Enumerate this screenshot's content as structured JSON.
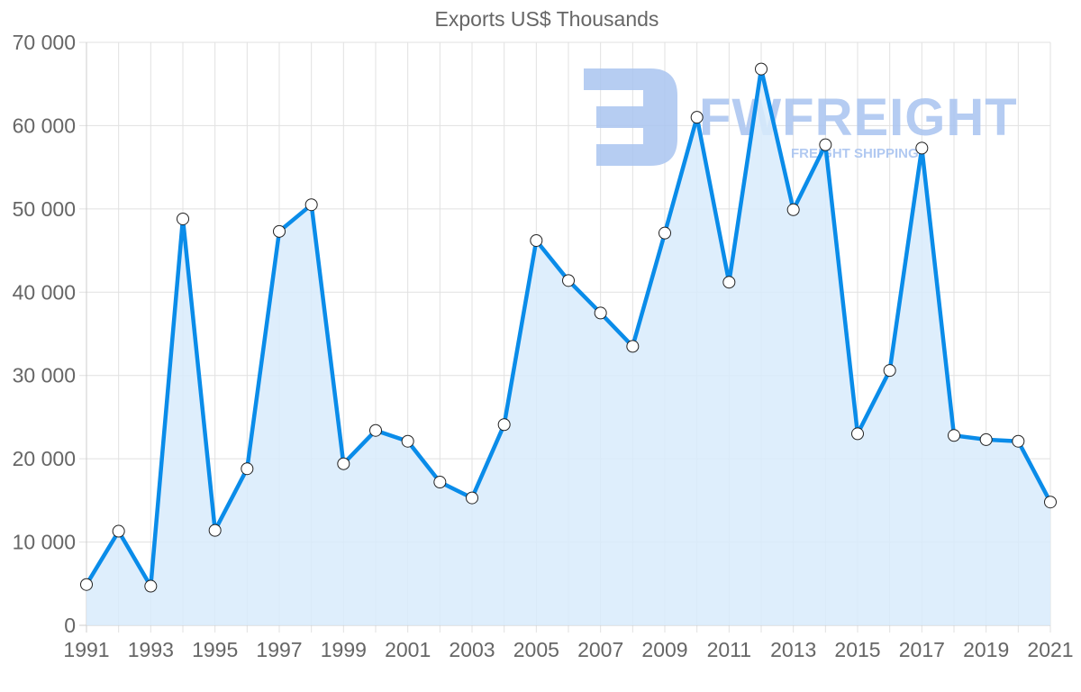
{
  "chart_data": {
    "type": "line",
    "title": "Exports US$ Thousands",
    "xlabel": "",
    "ylabel": "",
    "x": [
      1991,
      1992,
      1993,
      1994,
      1995,
      1996,
      1997,
      1998,
      1999,
      2000,
      2001,
      2002,
      2003,
      2004,
      2005,
      2006,
      2007,
      2008,
      2009,
      2010,
      2011,
      2012,
      2013,
      2014,
      2015,
      2016,
      2017,
      2018,
      2019,
      2020,
      2021
    ],
    "series": [
      {
        "name": "Exports US$ Thousands",
        "values": [
          4900,
          11300,
          4700,
          48800,
          11400,
          18800,
          47300,
          50500,
          19400,
          23400,
          22100,
          17200,
          15300,
          24100,
          46200,
          41400,
          37500,
          33500,
          47100,
          61000,
          41200,
          66800,
          49900,
          57700,
          23000,
          30600,
          57300,
          22800,
          22300,
          22100,
          14800
        ],
        "color": "#0a8ce9",
        "fill": "#d8ebfb"
      }
    ],
    "xticks": [
      "1991",
      "1993",
      "1995",
      "1997",
      "1999",
      "2001",
      "2003",
      "2005",
      "2007",
      "2009",
      "2011",
      "2013",
      "2015",
      "2017",
      "2019",
      "2021"
    ],
    "yticks": [
      "0",
      "10 000",
      "20 000",
      "30 000",
      "40 000",
      "50 000",
      "60 000",
      "70 000"
    ],
    "ylim": [
      0,
      70000
    ],
    "xlim": [
      1991,
      2021
    ],
    "grid": true,
    "legend": "none",
    "filled_area": true
  },
  "watermark": {
    "brand": "FWFREIGHT",
    "tagline": "FREIGHT SHIPPING",
    "color": "#a9c4f0"
  }
}
